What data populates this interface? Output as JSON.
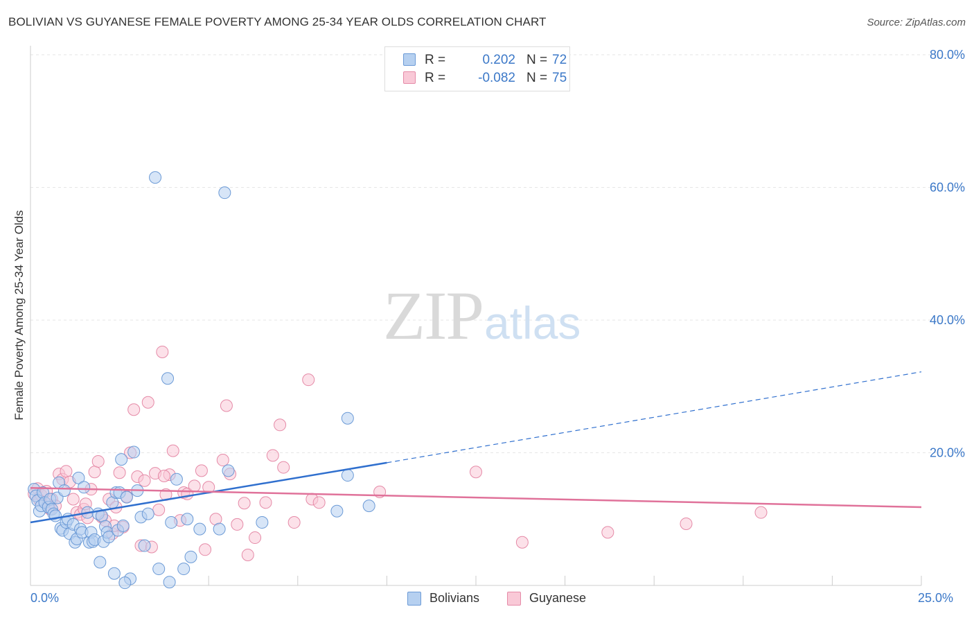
{
  "header": {
    "title": "BOLIVIAN VS GUYANESE FEMALE POVERTY AMONG 25-34 YEAR OLDS CORRELATION CHART",
    "source": "Source: ZipAtlas.com"
  },
  "watermark": {
    "zip": "ZIP",
    "atlas": "atlas"
  },
  "legend": {
    "rows": [
      {
        "r_label": "R =",
        "r_value": "0.202",
        "n_label": "N =",
        "n_value": "72"
      },
      {
        "r_label": "R =",
        "r_value": "-0.082",
        "n_label": "N =",
        "n_value": "75"
      }
    ]
  },
  "bottom_legend": {
    "bolivians": "Bolivians",
    "guyanese": "Guyanese"
  },
  "colors": {
    "bolivians_fill": "#b6d0f0",
    "bolivians_stroke": "#6b9ad6",
    "bolivians_line": "#2f6fce",
    "guyanese_fill": "#f9c9d7",
    "guyanese_stroke": "#e58aa7",
    "guyanese_line": "#e0729a",
    "tick_label": "#3b78c8",
    "grid": "#e6e6e6"
  },
  "chart_data": {
    "type": "scatter",
    "title": "BOLIVIAN VS GUYANESE FEMALE POVERTY AMONG 25-34 YEAR OLDS CORRELATION CHART",
    "xlabel": "",
    "ylabel": "Female Poverty Among 25-34 Year Olds",
    "xlim": [
      0,
      25
    ],
    "ylim": [
      0,
      80
    ],
    "x_tick_labels": [
      "0.0%",
      "25.0%"
    ],
    "y_ticks": [
      20,
      40,
      60,
      80
    ],
    "y_tick_labels": [
      "20.0%",
      "40.0%",
      "60.0%",
      "80.0%"
    ],
    "grid": true,
    "legend_position": "top-center",
    "series": [
      {
        "name": "Bolivians",
        "r": 0.202,
        "n": 72,
        "trend": {
          "x0": 0,
          "y0": 9.5,
          "x_solid_end": 10,
          "y_solid_end": 18.5,
          "x1": 25,
          "y1": 32.2
        },
        "points": [
          [
            0.1,
            14.5
          ],
          [
            0.15,
            13.5
          ],
          [
            0.2,
            12.8
          ],
          [
            0.25,
            11.2
          ],
          [
            0.3,
            12.0
          ],
          [
            0.35,
            14.0
          ],
          [
            0.4,
            12.5
          ],
          [
            0.5,
            11.8
          ],
          [
            0.55,
            13.0
          ],
          [
            0.6,
            11.5
          ],
          [
            0.65,
            10.8
          ],
          [
            0.7,
            10.5
          ],
          [
            0.75,
            13.2
          ],
          [
            0.8,
            15.5
          ],
          [
            0.85,
            8.6
          ],
          [
            0.9,
            8.3
          ],
          [
            0.95,
            14.3
          ],
          [
            1.0,
            9.5
          ],
          [
            1.05,
            10.0
          ],
          [
            1.1,
            7.8
          ],
          [
            1.2,
            9.2
          ],
          [
            1.25,
            6.5
          ],
          [
            1.3,
            7.0
          ],
          [
            1.35,
            16.2
          ],
          [
            1.4,
            8.5
          ],
          [
            1.45,
            8.0
          ],
          [
            1.5,
            14.8
          ],
          [
            1.6,
            11.0
          ],
          [
            1.65,
            6.5
          ],
          [
            1.7,
            8.0
          ],
          [
            1.75,
            6.6
          ],
          [
            1.8,
            6.9
          ],
          [
            1.9,
            10.8
          ],
          [
            1.95,
            3.5
          ],
          [
            2.0,
            10.5
          ],
          [
            2.05,
            6.6
          ],
          [
            2.1,
            8.9
          ],
          [
            2.15,
            8.0
          ],
          [
            2.2,
            7.3
          ],
          [
            2.3,
            12.5
          ],
          [
            2.35,
            1.8
          ],
          [
            2.4,
            14.0
          ],
          [
            2.45,
            8.3
          ],
          [
            2.5,
            14.0
          ],
          [
            2.55,
            19.0
          ],
          [
            2.6,
            9.0
          ],
          [
            2.7,
            13.3
          ],
          [
            2.8,
            1.0
          ],
          [
            2.9,
            20.1
          ],
          [
            3.0,
            14.3
          ],
          [
            3.1,
            10.3
          ],
          [
            3.2,
            6.0
          ],
          [
            3.3,
            10.8
          ],
          [
            3.5,
            61.5
          ],
          [
            3.6,
            2.5
          ],
          [
            3.85,
            31.2
          ],
          [
            3.95,
            9.5
          ],
          [
            4.1,
            16.0
          ],
          [
            4.3,
            2.5
          ],
          [
            4.4,
            10.0
          ],
          [
            4.5,
            4.3
          ],
          [
            4.75,
            8.5
          ],
          [
            5.3,
            8.5
          ],
          [
            5.45,
            59.2
          ],
          [
            5.55,
            17.3
          ],
          [
            6.5,
            9.5
          ],
          [
            8.9,
            25.2
          ],
          [
            8.6,
            11.2
          ],
          [
            8.9,
            16.6
          ],
          [
            9.5,
            12.0
          ],
          [
            3.9,
            0.5
          ],
          [
            2.65,
            0.4
          ]
        ]
      },
      {
        "name": "Guyanese",
        "r": -0.082,
        "n": 75,
        "trend": {
          "x0": 0,
          "y0": 14.7,
          "x1": 25,
          "y1": 11.8
        },
        "points": [
          [
            0.1,
            13.8
          ],
          [
            0.2,
            14.6
          ],
          [
            0.25,
            12.9
          ],
          [
            0.3,
            13.6
          ],
          [
            0.4,
            12.5
          ],
          [
            0.45,
            14.2
          ],
          [
            0.5,
            12.2
          ],
          [
            0.55,
            11.5
          ],
          [
            0.6,
            13.0
          ],
          [
            0.7,
            12.0
          ],
          [
            0.8,
            16.8
          ],
          [
            0.9,
            16.0
          ],
          [
            1.0,
            17.2
          ],
          [
            1.1,
            15.6
          ],
          [
            1.2,
            13.0
          ],
          [
            1.3,
            11.0
          ],
          [
            1.4,
            10.7
          ],
          [
            1.5,
            11.5
          ],
          [
            1.6,
            10.2
          ],
          [
            1.7,
            14.5
          ],
          [
            1.8,
            17.1
          ],
          [
            1.9,
            18.7
          ],
          [
            2.0,
            10.3
          ],
          [
            2.1,
            9.8
          ],
          [
            2.2,
            13.0
          ],
          [
            2.3,
            7.8
          ],
          [
            2.4,
            11.8
          ],
          [
            2.5,
            17.0
          ],
          [
            2.6,
            8.8
          ],
          [
            2.7,
            13.4
          ],
          [
            2.8,
            20.0
          ],
          [
            2.9,
            26.5
          ],
          [
            3.0,
            16.4
          ],
          [
            3.1,
            6.0
          ],
          [
            3.2,
            15.8
          ],
          [
            3.3,
            27.6
          ],
          [
            3.4,
            5.8
          ],
          [
            3.5,
            16.9
          ],
          [
            3.6,
            11.4
          ],
          [
            3.7,
            35.2
          ],
          [
            3.8,
            13.7
          ],
          [
            3.9,
            16.7
          ],
          [
            4.0,
            20.3
          ],
          [
            4.2,
            9.8
          ],
          [
            4.3,
            14.0
          ],
          [
            4.4,
            13.8
          ],
          [
            4.6,
            15.0
          ],
          [
            4.8,
            17.3
          ],
          [
            4.9,
            5.4
          ],
          [
            5.0,
            14.8
          ],
          [
            5.2,
            10.0
          ],
          [
            5.4,
            18.9
          ],
          [
            5.5,
            27.1
          ],
          [
            5.6,
            16.8
          ],
          [
            5.8,
            9.2
          ],
          [
            6.0,
            12.4
          ],
          [
            6.1,
            4.6
          ],
          [
            6.3,
            7.2
          ],
          [
            6.6,
            12.5
          ],
          [
            6.8,
            19.6
          ],
          [
            7.0,
            24.2
          ],
          [
            7.1,
            17.8
          ],
          [
            7.4,
            9.5
          ],
          [
            7.8,
            31.0
          ],
          [
            7.9,
            13.0
          ],
          [
            8.1,
            12.5
          ],
          [
            9.8,
            14.1
          ],
          [
            12.5,
            17.1
          ],
          [
            13.8,
            6.5
          ],
          [
            16.2,
            8.0
          ],
          [
            18.4,
            9.3
          ],
          [
            20.5,
            11.0
          ],
          [
            2.35,
            9.0
          ],
          [
            3.75,
            16.5
          ],
          [
            1.55,
            12.3
          ]
        ]
      }
    ]
  }
}
